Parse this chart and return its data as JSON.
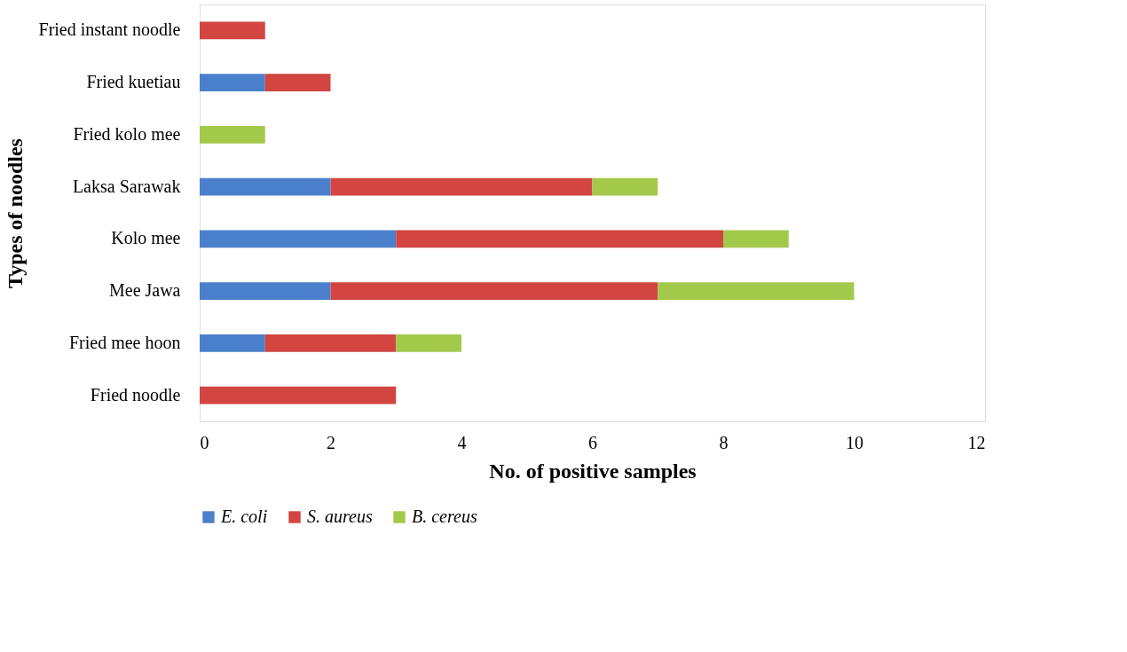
{
  "chart_data": {
    "type": "bar",
    "orientation": "horizontal",
    "stacked": true,
    "xlabel": "No. of positive samples",
    "ylabel": "Types of noodles",
    "categories": [
      "Fried instant noodle",
      "Fried kuetiau",
      "Fried kolo mee",
      "Laksa Sarawak",
      "Kolo mee",
      "Mee Jawa",
      "Fried mee hoon",
      "Fried noodle"
    ],
    "series": [
      {
        "name": "E. coli",
        "color": "#4a80cb",
        "values": [
          0,
          1,
          0,
          2,
          3,
          2,
          1,
          0
        ]
      },
      {
        "name": "S. aureus",
        "color": "#d24541",
        "values": [
          1,
          1,
          0,
          4,
          5,
          5,
          2,
          3
        ]
      },
      {
        "name": "B. cereus",
        "color": "#a3c94b",
        "values": [
          0,
          0,
          1,
          1,
          1,
          3,
          1,
          0
        ]
      }
    ],
    "xlim": [
      0,
      12
    ],
    "xticks": [
      0,
      2,
      4,
      6,
      8,
      10,
      12
    ],
    "grid": false,
    "legend": "bottom"
  }
}
